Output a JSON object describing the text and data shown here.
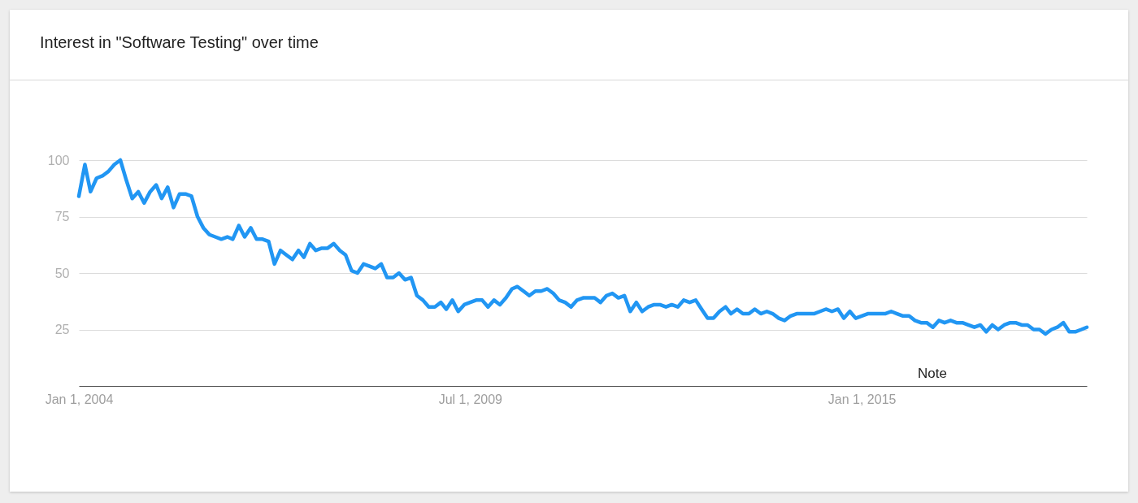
{
  "chart_data": {
    "type": "line",
    "title": "Interest in \"Software Testing\" over time",
    "x": [
      "2004-01",
      "2004-02",
      "2004-03",
      "2004-04",
      "2004-05",
      "2004-06",
      "2004-07",
      "2004-08",
      "2004-09",
      "2004-10",
      "2004-11",
      "2004-12",
      "2005-01",
      "2005-02",
      "2005-03",
      "2005-04",
      "2005-05",
      "2005-06",
      "2005-07",
      "2005-08",
      "2005-09",
      "2005-10",
      "2005-11",
      "2005-12",
      "2006-01",
      "2006-02",
      "2006-03",
      "2006-04",
      "2006-05",
      "2006-06",
      "2006-07",
      "2006-08",
      "2006-09",
      "2006-10",
      "2006-11",
      "2006-12",
      "2007-01",
      "2007-02",
      "2007-03",
      "2007-04",
      "2007-05",
      "2007-06",
      "2007-07",
      "2007-08",
      "2007-09",
      "2007-10",
      "2007-11",
      "2007-12",
      "2008-01",
      "2008-02",
      "2008-03",
      "2008-04",
      "2008-05",
      "2008-06",
      "2008-07",
      "2008-08",
      "2008-09",
      "2008-10",
      "2008-11",
      "2008-12",
      "2009-01",
      "2009-02",
      "2009-03",
      "2009-04",
      "2009-05",
      "2009-06",
      "2009-07",
      "2009-08",
      "2009-09",
      "2009-10",
      "2009-11",
      "2009-12",
      "2010-01",
      "2010-02",
      "2010-03",
      "2010-04",
      "2010-05",
      "2010-06",
      "2010-07",
      "2010-08",
      "2010-09",
      "2010-10",
      "2010-11",
      "2010-12",
      "2011-01",
      "2011-02",
      "2011-03",
      "2011-04",
      "2011-05",
      "2011-06",
      "2011-07",
      "2011-08",
      "2011-09",
      "2011-10",
      "2011-11",
      "2011-12",
      "2012-01",
      "2012-02",
      "2012-03",
      "2012-04",
      "2012-05",
      "2012-06",
      "2012-07",
      "2012-08",
      "2012-09",
      "2012-10",
      "2012-11",
      "2012-12",
      "2013-01",
      "2013-02",
      "2013-03",
      "2013-04",
      "2013-05",
      "2013-06",
      "2013-07",
      "2013-08",
      "2013-09",
      "2013-10",
      "2013-11",
      "2013-12",
      "2014-01",
      "2014-02",
      "2014-03",
      "2014-04",
      "2014-05",
      "2014-06",
      "2014-07",
      "2014-08",
      "2014-09",
      "2014-10",
      "2014-11",
      "2014-12",
      "2015-01",
      "2015-02",
      "2015-03",
      "2015-04",
      "2015-05",
      "2015-06",
      "2015-07",
      "2015-08",
      "2015-09",
      "2015-10",
      "2015-11",
      "2015-12",
      "2016-01",
      "2016-02",
      "2016-03",
      "2016-04",
      "2016-05",
      "2016-06",
      "2016-07",
      "2016-08",
      "2016-09",
      "2016-10",
      "2016-11",
      "2016-12",
      "2017-01",
      "2017-02",
      "2017-03",
      "2017-04",
      "2017-05",
      "2017-06",
      "2017-07",
      "2017-08",
      "2017-09",
      "2017-10",
      "2017-11",
      "2017-12",
      "2018-01",
      "2018-02",
      "2018-03"
    ],
    "values": [
      84,
      98,
      86,
      92,
      93,
      95,
      98,
      100,
      91,
      83,
      86,
      81,
      86,
      89,
      83,
      88,
      79,
      85,
      85,
      84,
      75,
      70,
      67,
      66,
      65,
      66,
      65,
      71,
      66,
      70,
      65,
      65,
      64,
      54,
      60,
      58,
      56,
      60,
      57,
      63,
      60,
      61,
      61,
      63,
      60,
      58,
      51,
      50,
      54,
      53,
      52,
      54,
      48,
      48,
      50,
      47,
      48,
      40,
      38,
      35,
      35,
      37,
      34,
      38,
      33,
      36,
      37,
      38,
      38,
      35,
      38,
      36,
      39,
      43,
      44,
      42,
      40,
      42,
      42,
      43,
      41,
      38,
      37,
      35,
      38,
      39,
      39,
      39,
      37,
      40,
      41,
      39,
      40,
      33,
      37,
      33,
      35,
      36,
      36,
      35,
      36,
      35,
      38,
      37,
      38,
      34,
      30,
      30,
      33,
      35,
      32,
      34,
      32,
      32,
      34,
      32,
      33,
      32,
      30,
      29,
      31,
      32,
      32,
      32,
      32,
      33,
      34,
      33,
      34,
      30,
      33,
      30,
      31,
      32,
      32,
      32,
      32,
      33,
      32,
      31,
      31,
      29,
      28,
      28,
      26,
      29,
      28,
      29,
      28,
      28,
      27,
      26,
      27,
      24,
      27,
      25,
      27,
      28,
      28,
      27,
      27,
      25,
      25,
      23,
      25,
      26,
      28,
      24,
      24,
      25,
      26
    ],
    "color": "#2196f3",
    "xlim": [
      "2004-01",
      "2018-03"
    ],
    "xticks": [
      {
        "value": "2004-01-01",
        "label": "Jan 1, 2004"
      },
      {
        "value": "2009-07-01",
        "label": "Jul 1, 2009"
      },
      {
        "value": "2015-01-01",
        "label": "Jan 1, 2015"
      }
    ],
    "ylim": [
      0,
      100
    ],
    "yticks": [
      25,
      50,
      75,
      100
    ],
    "grid": "y",
    "annotations": [
      "Note"
    ]
  }
}
